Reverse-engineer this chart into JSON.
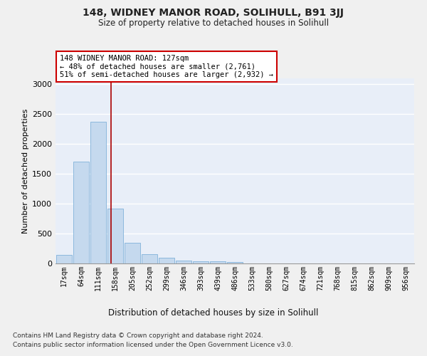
{
  "title": "148, WIDNEY MANOR ROAD, SOLIHULL, B91 3JJ",
  "subtitle": "Size of property relative to detached houses in Solihull",
  "xlabel": "Distribution of detached houses by size in Solihull",
  "ylabel": "Number of detached properties",
  "bin_labels": [
    "17sqm",
    "64sqm",
    "111sqm",
    "158sqm",
    "205sqm",
    "252sqm",
    "299sqm",
    "346sqm",
    "393sqm",
    "439sqm",
    "486sqm",
    "533sqm",
    "580sqm",
    "627sqm",
    "674sqm",
    "721sqm",
    "768sqm",
    "815sqm",
    "862sqm",
    "909sqm",
    "956sqm"
  ],
  "bar_heights": [
    140,
    1700,
    2370,
    920,
    340,
    155,
    90,
    50,
    35,
    30,
    20,
    0,
    0,
    0,
    0,
    0,
    0,
    0,
    0,
    0,
    0
  ],
  "bar_color": "#c5d9ee",
  "bar_edge_color": "#6fa8d4",
  "vline_x": 2.73,
  "vline_color": "#aa0000",
  "annotation_line1": "148 WIDNEY MANOR ROAD: 127sqm",
  "annotation_line2": "← 48% of detached houses are smaller (2,761)",
  "annotation_line3": "51% of semi-detached houses are larger (2,932) →",
  "annotation_box_edgecolor": "#cc0000",
  "ylim": [
    0,
    3100
  ],
  "yticks": [
    0,
    500,
    1000,
    1500,
    2000,
    2500,
    3000
  ],
  "footnote1": "Contains HM Land Registry data © Crown copyright and database right 2024.",
  "footnote2": "Contains public sector information licensed under the Open Government Licence v3.0.",
  "fig_facecolor": "#f0f0f0",
  "plot_facecolor": "#e8eef8",
  "grid_color": "#ffffff"
}
